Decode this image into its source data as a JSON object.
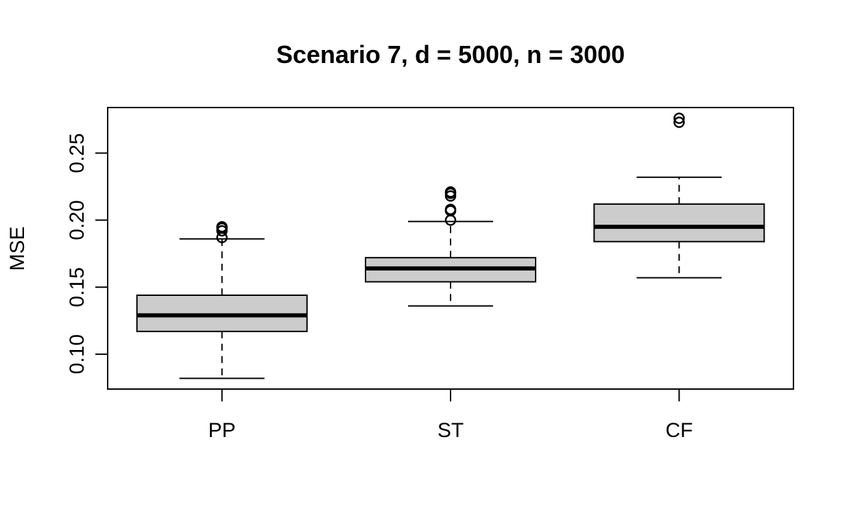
{
  "chart_data": {
    "type": "boxplot",
    "title": "Scenario 7, d = 5000, n = 3000",
    "xlabel": "",
    "ylabel": "MSE",
    "categories": [
      "PP",
      "ST",
      "CF"
    ],
    "ylim": [
      0.074,
      0.284
    ],
    "y_ticks": [
      0.1,
      0.15,
      0.2,
      0.25
    ],
    "y_tick_labels": [
      "0.10",
      "0.15",
      "0.20",
      "0.25"
    ],
    "grid": false,
    "legend": "none",
    "box_fill": "#cccccc",
    "series": [
      {
        "whisker_low": 0.082,
        "q1": 0.117,
        "median": 0.129,
        "q3": 0.144,
        "whisker_high": 0.186,
        "outliers": [
          0.187,
          0.192,
          0.194,
          0.195
        ]
      },
      {
        "whisker_low": 0.136,
        "q1": 0.154,
        "median": 0.164,
        "q3": 0.172,
        "whisker_high": 0.199,
        "outliers": [
          0.2,
          0.207,
          0.208,
          0.218,
          0.22,
          0.221
        ]
      },
      {
        "whisker_low": 0.157,
        "q1": 0.184,
        "median": 0.195,
        "q3": 0.212,
        "whisker_high": 0.232,
        "outliers": [
          0.273,
          0.276
        ]
      }
    ]
  }
}
